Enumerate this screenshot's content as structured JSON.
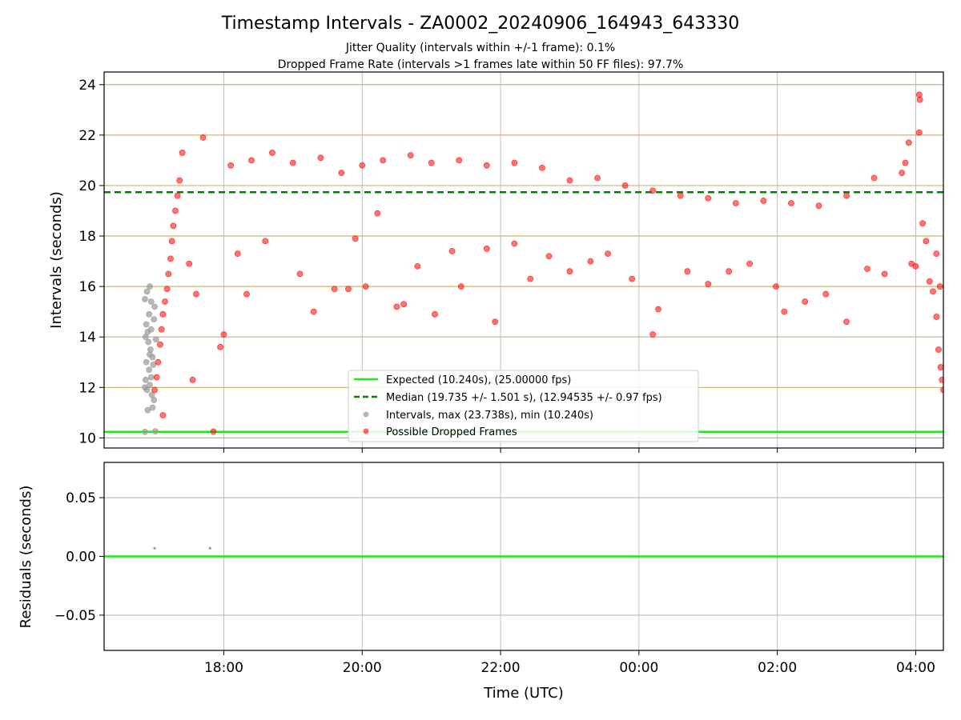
{
  "chart_data": {
    "type": "scatter",
    "title": "Timestamp Intervals - ZA0002_20240906_164943_643330",
    "subtitle_lines": [
      "Jitter Quality (intervals within +/-1 frame): 0.1%",
      "Dropped Frame Rate (intervals >1 frames late within 50 FF files): 97.7%"
    ],
    "xlabel": "Time (UTC)",
    "x_unit": "hours after 00:00 of 2024-09-06 (UTC)",
    "xlim": [
      16.27,
      28.4
    ],
    "x_ticks": [
      {
        "value": 18,
        "label": "18:00"
      },
      {
        "value": 20,
        "label": "20:00"
      },
      {
        "value": 22,
        "label": "22:00"
      },
      {
        "value": 24,
        "label": "00:00"
      },
      {
        "value": 26,
        "label": "02:00"
      },
      {
        "value": 28,
        "label": "04:00"
      }
    ],
    "top_panel": {
      "ylabel": "Intervals (seconds)",
      "ylim": [
        9.6,
        24.5
      ],
      "y_ticks": [
        10,
        12,
        14,
        16,
        18,
        20,
        22,
        24
      ],
      "y_tick_labels": [
        "10",
        "12",
        "14",
        "16",
        "18",
        "20",
        "22",
        "24"
      ],
      "grid": true,
      "expected_interval": 10.24,
      "median_interval": 19.735,
      "legend": {
        "placement": "lower-center",
        "entries": [
          {
            "label": "Expected (10.240s), (25.00000 fps)",
            "style": "line",
            "color": "#1ee81e"
          },
          {
            "label": "Median (19.735 +/- 1.501 s), (12.94535 +/- 0.97 fps)",
            "style": "dashed",
            "color": "#008000"
          },
          {
            "label": "Intervals, max (23.738s), min (10.240s)",
            "style": "marker",
            "color": "#999999"
          },
          {
            "label": "Possible Dropped Frames",
            "style": "marker",
            "color": "#ff0000"
          }
        ]
      },
      "series": [
        {
          "name": "Intervals, max (23.738s), min (10.240s)",
          "color": "#999999",
          "points": [
            [
              16.86,
              15.5
            ],
            [
              16.89,
              15.8
            ],
            [
              16.93,
              16.0
            ],
            [
              16.88,
              14.5
            ],
            [
              16.92,
              14.9
            ],
            [
              16.95,
              14.3
            ],
            [
              16.87,
              14.0
            ],
            [
              16.91,
              13.8
            ],
            [
              16.94,
              13.5
            ],
            [
              16.97,
              13.2
            ],
            [
              16.88,
              13.0
            ],
            [
              16.92,
              12.7
            ],
            [
              16.95,
              12.4
            ],
            [
              16.86,
              12.0
            ],
            [
              16.89,
              11.9
            ],
            [
              16.93,
              12.1
            ],
            [
              16.96,
              11.7
            ],
            [
              16.99,
              11.5
            ],
            [
              16.9,
              11.1
            ],
            [
              16.97,
              11.2
            ],
            [
              16.86,
              10.24
            ],
            [
              17.01,
              10.26
            ],
            [
              16.99,
              14.7
            ],
            [
              17.02,
              13.9
            ],
            [
              16.98,
              12.9
            ],
            [
              16.9,
              14.2
            ],
            [
              16.93,
              13.3
            ],
            [
              16.87,
              12.3
            ],
            [
              17.0,
              15.2
            ],
            [
              16.95,
              15.4
            ]
          ]
        },
        {
          "name": "Possible Dropped Frames",
          "color": "#ff0000",
          "points": [
            [
              17.0,
              11.9
            ],
            [
              17.03,
              12.4
            ],
            [
              17.05,
              13.0
            ],
            [
              17.08,
              13.7
            ],
            [
              17.1,
              14.3
            ],
            [
              17.12,
              14.9
            ],
            [
              17.15,
              15.4
            ],
            [
              17.18,
              15.9
            ],
            [
              17.2,
              16.5
            ],
            [
              17.23,
              17.1
            ],
            [
              17.25,
              17.8
            ],
            [
              17.27,
              18.4
            ],
            [
              17.3,
              19.0
            ],
            [
              17.33,
              19.6
            ],
            [
              17.36,
              20.2
            ],
            [
              17.12,
              10.9
            ],
            [
              17.85,
              10.25
            ],
            [
              17.55,
              12.3
            ],
            [
              17.95,
              13.6
            ],
            [
              18.0,
              14.1
            ],
            [
              17.4,
              21.3
            ],
            [
              17.7,
              21.9
            ],
            [
              17.5,
              16.9
            ],
            [
              17.6,
              15.7
            ],
            [
              18.2,
              17.3
            ],
            [
              18.33,
              15.7
            ],
            [
              18.6,
              17.8
            ],
            [
              19.1,
              16.5
            ],
            [
              19.3,
              15.0
            ],
            [
              19.6,
              15.9
            ],
            [
              19.8,
              15.9
            ],
            [
              19.9,
              17.9
            ],
            [
              20.05,
              16.0
            ],
            [
              20.22,
              18.9
            ],
            [
              20.5,
              15.2
            ],
            [
              20.6,
              15.3
            ],
            [
              20.8,
              16.8
            ],
            [
              21.05,
              14.9
            ],
            [
              21.3,
              17.4
            ],
            [
              21.43,
              16.0
            ],
            [
              21.8,
              17.5
            ],
            [
              21.92,
              14.6
            ],
            [
              22.2,
              17.7
            ],
            [
              22.43,
              16.3
            ],
            [
              22.7,
              17.2
            ],
            [
              23.0,
              16.6
            ],
            [
              23.3,
              17.0
            ],
            [
              23.55,
              17.3
            ],
            [
              23.9,
              16.3
            ],
            [
              24.2,
              14.1
            ],
            [
              24.28,
              15.1
            ],
            [
              24.7,
              16.6
            ],
            [
              25.0,
              16.1
            ],
            [
              25.3,
              16.6
            ],
            [
              25.6,
              16.9
            ],
            [
              25.98,
              16.0
            ],
            [
              26.1,
              15.0
            ],
            [
              26.4,
              15.4
            ],
            [
              26.7,
              15.7
            ],
            [
              27.0,
              14.6
            ],
            [
              27.3,
              16.7
            ],
            [
              27.55,
              16.5
            ],
            [
              27.94,
              16.9
            ],
            [
              28.05,
              23.6
            ],
            [
              28.06,
              23.4
            ],
            [
              28.05,
              22.1
            ],
            [
              28.1,
              18.5
            ],
            [
              28.15,
              17.8
            ],
            [
              28.2,
              16.2
            ],
            [
              28.25,
              15.8
            ],
            [
              28.3,
              14.8
            ],
            [
              28.33,
              13.5
            ],
            [
              28.36,
              12.8
            ],
            [
              28.38,
              12.3
            ],
            [
              28.4,
              11.9
            ],
            [
              28.35,
              16.0
            ],
            [
              28.3,
              17.3
            ],
            [
              27.9,
              21.7
            ],
            [
              27.85,
              20.9
            ],
            [
              28.0,
              16.8
            ],
            [
              18.1,
              20.8
            ],
            [
              18.4,
              21.0
            ],
            [
              18.7,
              21.3
            ],
            [
              19.0,
              20.9
            ],
            [
              19.4,
              21.1
            ],
            [
              19.7,
              20.5
            ],
            [
              20.0,
              20.8
            ],
            [
              20.3,
              21.0
            ],
            [
              20.7,
              21.2
            ],
            [
              21.0,
              20.9
            ],
            [
              21.4,
              21.0
            ],
            [
              21.8,
              20.8
            ],
            [
              22.2,
              20.9
            ],
            [
              22.6,
              20.7
            ],
            [
              23.0,
              20.2
            ],
            [
              23.4,
              20.3
            ],
            [
              23.8,
              20.0
            ],
            [
              24.2,
              19.8
            ],
            [
              24.6,
              19.6
            ],
            [
              25.0,
              19.5
            ],
            [
              25.4,
              19.3
            ],
            [
              25.8,
              19.4
            ],
            [
              26.2,
              19.3
            ],
            [
              26.6,
              19.2
            ],
            [
              27.0,
              19.6
            ],
            [
              27.4,
              20.3
            ],
            [
              27.8,
              20.5
            ]
          ]
        }
      ]
    },
    "bottom_panel": {
      "ylabel": "Residuals (seconds)",
      "ylim": [
        -0.08,
        0.08
      ],
      "y_ticks": [
        0.05,
        0.0,
        -0.05
      ],
      "y_tick_labels": [
        "0.05",
        "0.00",
        "−0.05"
      ],
      "grid": true,
      "zero_line_color": "#1ee81e",
      "series": [
        {
          "color": "#999999",
          "points": [
            [
              17.0,
              0.007
            ],
            [
              17.8,
              0.007
            ]
          ]
        }
      ]
    }
  }
}
